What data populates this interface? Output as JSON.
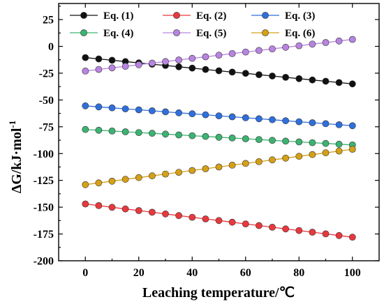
{
  "chart_data": {
    "type": "line",
    "xlabel": "Leaching temperature/℃",
    "ylabel_main": "ΔG/kJ·mol",
    "ylabel_sup": "-1",
    "xlim": [
      -10,
      110
    ],
    "ylim": [
      -200,
      40
    ],
    "xticks": [
      0,
      20,
      40,
      60,
      80,
      100
    ],
    "yticks": [
      25,
      0,
      -25,
      -50,
      -75,
      -100,
      -125,
      -150,
      -175,
      -200
    ],
    "grid": false,
    "legend_position": "top",
    "x": [
      0,
      5,
      10,
      15,
      20,
      25,
      30,
      35,
      40,
      45,
      50,
      55,
      60,
      65,
      70,
      75,
      80,
      85,
      90,
      95,
      100
    ],
    "series": [
      {
        "name": "Eq. (1)",
        "color": "#111111",
        "start": -10.5,
        "end": -35
      },
      {
        "name": "Eq. (2)",
        "color": "#e8383d",
        "start": -147,
        "end": -178
      },
      {
        "name": "Eq. (3)",
        "color": "#2f6fdc",
        "start": -55.5,
        "end": -74
      },
      {
        "name": "Eq. (4)",
        "color": "#3cb371",
        "start": -77.5,
        "end": -92
      },
      {
        "name": "Eq. (5)",
        "color": "#b784e0",
        "start": -23,
        "end": 6.5
      },
      {
        "name": "Eq. (6)",
        "color": "#d4a017",
        "start": -129,
        "end": -96
      }
    ]
  }
}
